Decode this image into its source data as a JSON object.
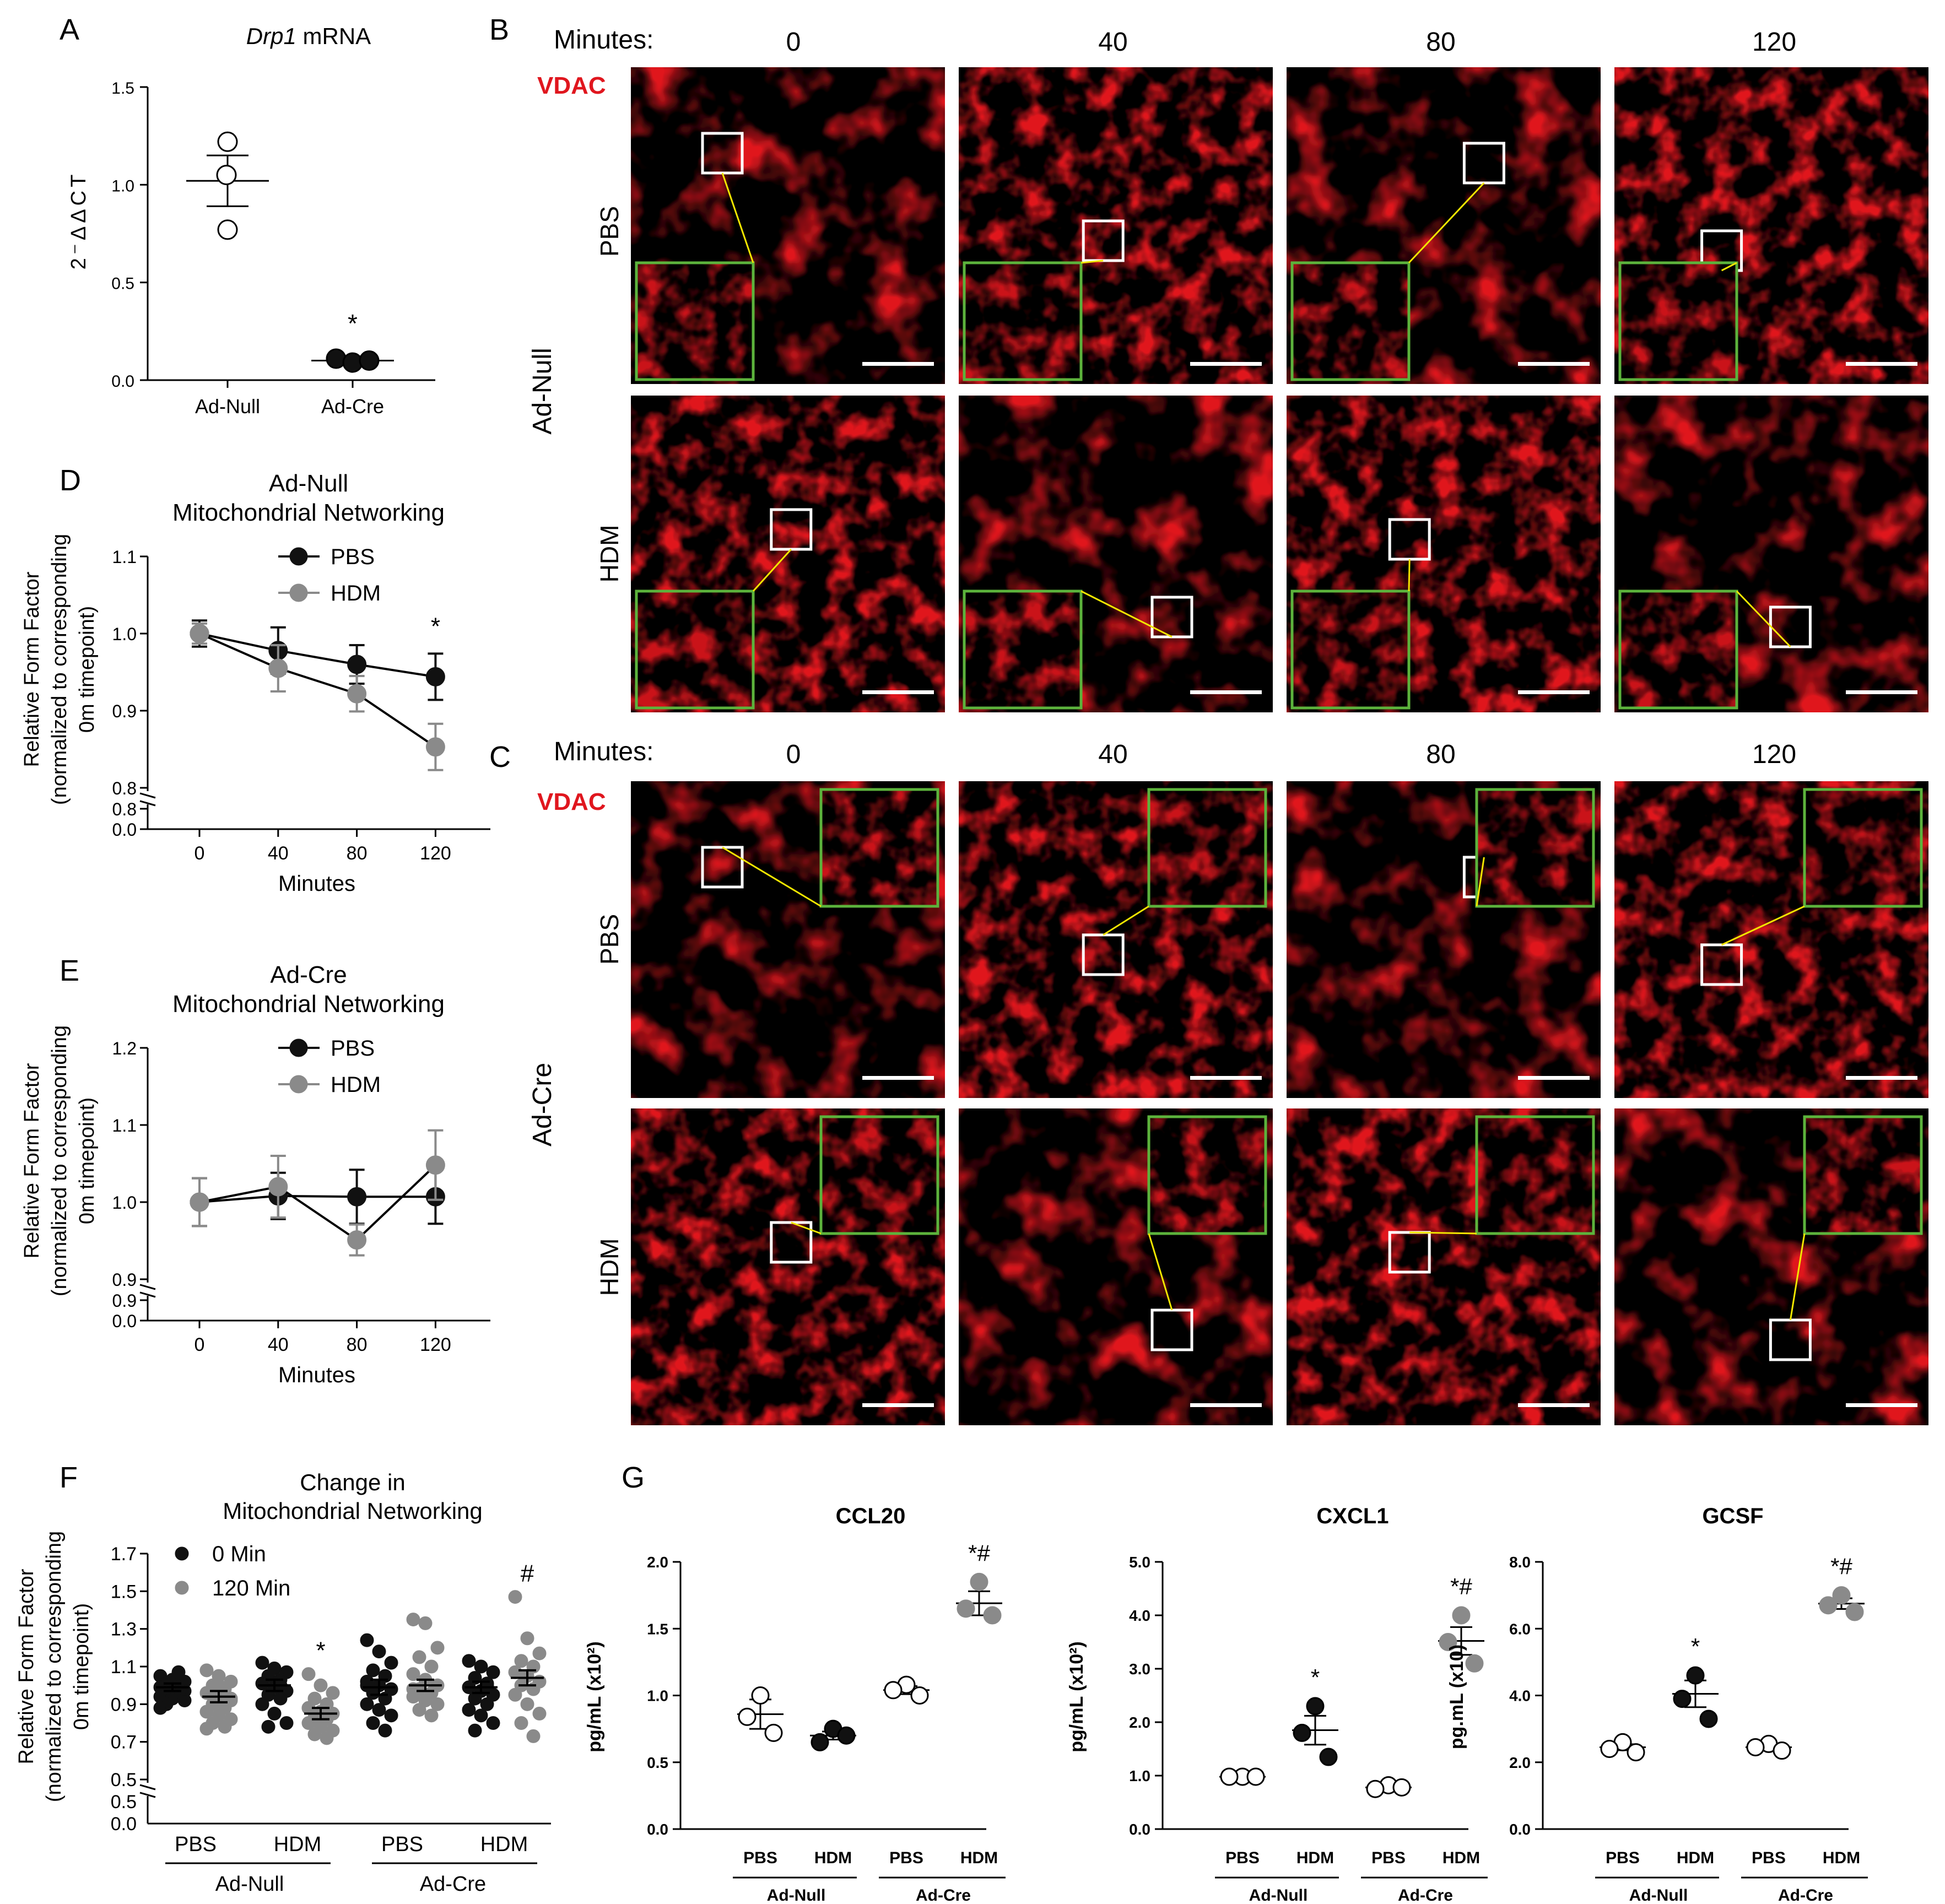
{
  "colors": {
    "black": "#111111",
    "gray": "#8a8a8a",
    "red": "#e0161e",
    "green": "#5cb33c",
    "yellow": "#f2e600",
    "white": "#ffffff"
  },
  "panels": {
    "A": {
      "letter": "A"
    },
    "B": {
      "letter": "B",
      "minutes_label": "Minutes:",
      "timepoints": [
        "0",
        "40",
        "80",
        "120"
      ],
      "stain": "VDAC",
      "group": "Ad-Null",
      "rows": [
        "PBS",
        "HDM"
      ]
    },
    "C": {
      "letter": "C",
      "minutes_label": "Minutes:",
      "timepoints": [
        "0",
        "40",
        "80",
        "120"
      ],
      "stain": "VDAC",
      "group": "Ad-Cre",
      "rows": [
        "PBS",
        "HDM"
      ]
    },
    "D": {
      "letter": "D"
    },
    "E": {
      "letter": "E"
    },
    "F": {
      "letter": "F"
    },
    "G": {
      "letter": "G"
    }
  },
  "chart_data": [
    {
      "panel": "A",
      "type": "scatter",
      "title_italic": "Drp1",
      "title_rest": " mRNA",
      "ylabel": "2⁻ΔΔCT",
      "ylim": [
        0,
        1.5
      ],
      "yticks": [
        "0.0",
        "0.5",
        "1.0",
        "1.5"
      ],
      "categories": [
        "Ad-Null",
        "Ad-Cre"
      ],
      "groups": [
        {
          "category": "Ad-Null",
          "fill": "open",
          "points": [
            1.22,
            1.05,
            0.77
          ],
          "mean": 1.02,
          "sem": 0.13
        },
        {
          "category": "Ad-Cre",
          "fill": "black",
          "points": [
            0.11,
            0.09,
            0.1
          ],
          "mean": 0.1,
          "sem": 0.01,
          "annotation": "*"
        }
      ]
    },
    {
      "panel": "D",
      "type": "line",
      "title": [
        "Ad-Null",
        "Mitochondrial Networking"
      ],
      "ylabel": [
        "Relative Form Factor",
        "(normalized to corresponding",
        "0m timepoint)"
      ],
      "xlabel": "Minutes",
      "x": [
        0,
        40,
        80,
        120
      ],
      "xticks": [
        "0",
        "40",
        "80",
        "120"
      ],
      "ylim": [
        0.8,
        1.1
      ],
      "yticks": [
        "0.8",
        "0.9",
        "1.0",
        "1.1"
      ],
      "ybreak": [
        "0.8",
        "0.0"
      ],
      "legend": [
        "PBS",
        "HDM"
      ],
      "series": [
        {
          "name": "PBS",
          "color": "black",
          "values": [
            1.0,
            0.978,
            0.96,
            0.944
          ],
          "err": [
            0.017,
            0.03,
            0.025,
            0.03
          ]
        },
        {
          "name": "HDM",
          "color": "gray",
          "values": [
            1.0,
            0.955,
            0.922,
            0.853
          ],
          "err": [
            0.013,
            0.03,
            0.023,
            0.03
          ]
        }
      ],
      "annotations": [
        {
          "x": 120,
          "text": "*"
        }
      ]
    },
    {
      "panel": "E",
      "type": "line",
      "title": [
        "Ad-Cre",
        "Mitochondrial Networking"
      ],
      "ylabel": [
        "Relative Form Factor",
        "(normalized to corresponding",
        "0m timepoint)"
      ],
      "xlabel": "Minutes",
      "x": [
        0,
        40,
        80,
        120
      ],
      "xticks": [
        "0",
        "40",
        "80",
        "120"
      ],
      "ylim": [
        0.9,
        1.2
      ],
      "yticks": [
        "0.9",
        "1.0",
        "1.1",
        "1.2"
      ],
      "ybreak": [
        "0.9",
        "0.0"
      ],
      "legend": [
        "PBS",
        "HDM"
      ],
      "series": [
        {
          "name": "PBS",
          "color": "black",
          "values": [
            1.0,
            1.008,
            1.007,
            1.007
          ],
          "err": [
            0.031,
            0.03,
            0.035,
            0.035
          ]
        },
        {
          "name": "HDM",
          "color": "gray",
          "values": [
            1.0,
            1.02,
            0.951,
            1.048
          ],
          "err": [
            0.031,
            0.04,
            0.02,
            0.045
          ]
        }
      ]
    },
    {
      "panel": "F",
      "type": "scatter",
      "title": [
        "Change in",
        "Mitochondrial Networking"
      ],
      "ylabel": [
        "Relative Form Factor",
        "(normalized to corresponding",
        "0m timepoint)"
      ],
      "ylim": [
        0.5,
        1.7
      ],
      "yticks": [
        "0.5",
        "0.7",
        "0.9",
        "1.1",
        "1.3",
        "1.5",
        "1.7"
      ],
      "ybreak": [
        "0.5",
        "0.0"
      ],
      "xticks": [
        "PBS",
        "HDM",
        "PBS",
        "HDM"
      ],
      "groups_label": [
        "Ad-Null",
        "Ad-Cre"
      ],
      "legend": [
        "0 Min",
        "120 Min"
      ],
      "groups": [
        {
          "name": "0 Min",
          "color": "black",
          "x": 0,
          "mean": 0.99,
          "sem": 0.02,
          "points": [
            1.05,
            1.03,
            1.02,
            1.01,
            1.0,
            0.99,
            0.98,
            0.97,
            0.96,
            0.95,
            0.94,
            0.93,
            0.92,
            0.9,
            1.07,
            0.88
          ]
        },
        {
          "name": "120 Min",
          "color": "gray",
          "x": 0,
          "mean": 0.94,
          "sem": 0.03,
          "points": [
            1.08,
            1.05,
            1.02,
            1.0,
            0.98,
            0.96,
            0.94,
            0.92,
            0.9,
            0.88,
            0.86,
            0.84,
            0.82,
            0.8,
            0.78,
            0.77,
            1.0,
            0.93
          ]
        },
        {
          "name": "0 Min",
          "color": "black",
          "x": 1,
          "mean": 1.0,
          "sem": 0.03,
          "points": [
            1.12,
            1.09,
            1.07,
            1.05,
            1.03,
            1.01,
            0.99,
            0.97,
            0.95,
            0.93,
            0.9,
            0.85,
            0.8,
            0.78,
            1.0
          ]
        },
        {
          "name": "120 Min",
          "color": "gray",
          "x": 1,
          "mean": 0.85,
          "sem": 0.03,
          "points": [
            1.06,
            1.0,
            0.96,
            0.93,
            0.9,
            0.88,
            0.86,
            0.85,
            0.83,
            0.82,
            0.8,
            0.78,
            0.76,
            0.74,
            0.72,
            0.88,
            0.84
          ],
          "annotation": "*"
        },
        {
          "name": "0 Min",
          "color": "black",
          "x": 2,
          "mean": 0.99,
          "sem": 0.04,
          "points": [
            1.24,
            1.18,
            1.12,
            1.08,
            1.05,
            1.02,
            1.0,
            0.98,
            0.96,
            0.93,
            0.9,
            0.87,
            0.84,
            0.8,
            0.76,
            1.0
          ]
        },
        {
          "name": "120 Min",
          "color": "gray",
          "x": 2,
          "mean": 1.0,
          "sem": 0.03,
          "points": [
            1.35,
            1.33,
            1.2,
            1.15,
            1.1,
            1.06,
            1.03,
            1.0,
            0.98,
            0.96,
            0.94,
            0.92,
            0.9,
            0.87,
            0.84,
            0.98
          ]
        },
        {
          "name": "0 Min",
          "color": "black",
          "x": 3,
          "mean": 0.99,
          "sem": 0.03,
          "points": [
            1.13,
            1.1,
            1.07,
            1.04,
            1.01,
            0.99,
            0.97,
            0.95,
            0.93,
            0.9,
            0.87,
            0.84,
            0.8,
            0.76,
            1.0
          ]
        },
        {
          "name": "120 Min",
          "color": "gray",
          "x": 3,
          "mean": 1.04,
          "sem": 0.04,
          "points": [
            1.47,
            1.25,
            1.17,
            1.13,
            1.1,
            1.07,
            1.05,
            1.02,
            1.0,
            0.98,
            0.95,
            0.9,
            0.85,
            0.8,
            0.73
          ],
          "annotation": "#"
        }
      ]
    },
    {
      "panel": "G1",
      "type": "scatter",
      "title": "CCL20",
      "ylabel": "pg/mL (x10²)",
      "ylim": [
        0,
        2
      ],
      "yticks": [
        "0.0",
        "0.5",
        "1.0",
        "1.5",
        "2.0"
      ],
      "xticks": [
        "PBS",
        "HDM",
        "PBS",
        "HDM"
      ],
      "groups_label": [
        "Ad-Null",
        "Ad-Cre"
      ],
      "groups": [
        {
          "fill": "open",
          "points": [
            1.0,
            0.84,
            0.72
          ],
          "mean": 0.86,
          "sem": 0.11
        },
        {
          "fill": "black",
          "points": [
            0.75,
            0.65,
            0.7
          ],
          "mean": 0.7,
          "sem": 0.03
        },
        {
          "fill": "open",
          "points": [
            1.08,
            1.04,
            1.0
          ],
          "mean": 1.04,
          "sem": 0.03
        },
        {
          "fill": "gray",
          "points": [
            1.85,
            1.65,
            1.6
          ],
          "mean": 1.69,
          "sem": 0.09,
          "annotation": "*#"
        }
      ]
    },
    {
      "panel": "G2",
      "type": "scatter",
      "title": "CXCL1",
      "ylabel": "pg/mL (x10²)",
      "ylim": [
        0,
        5
      ],
      "yticks": [
        "0.0",
        "1.0",
        "2.0",
        "3.0",
        "4.0",
        "5.0"
      ],
      "xticks": [
        "PBS",
        "HDM",
        "PBS",
        "HDM"
      ],
      "groups_label": [
        "Ad-Null",
        "Ad-Cre"
      ],
      "groups": [
        {
          "fill": "open",
          "points": [
            0.98,
            0.98,
            0.98
          ],
          "mean": 0.98,
          "sem": 0.01
        },
        {
          "fill": "black",
          "points": [
            2.3,
            1.8,
            1.35
          ],
          "mean": 1.85,
          "sem": 0.27,
          "annotation": "*"
        },
        {
          "fill": "open",
          "points": [
            0.82,
            0.75,
            0.78
          ],
          "mean": 0.78,
          "sem": 0.03
        },
        {
          "fill": "gray",
          "points": [
            4.0,
            3.5,
            3.1
          ],
          "mean": 3.52,
          "sem": 0.26,
          "annotation": "*#"
        }
      ]
    },
    {
      "panel": "G3",
      "type": "scatter",
      "title": "GCSF",
      "ylabel": "pg.mL (x10)",
      "ylim": [
        0,
        8
      ],
      "yticks": [
        "0.0",
        "2.0",
        "4.0",
        "6.0",
        "8.0"
      ],
      "xticks": [
        "PBS",
        "HDM",
        "PBS",
        "HDM"
      ],
      "groups_label": [
        "Ad-Null",
        "Ad-Cre"
      ],
      "groups": [
        {
          "fill": "open",
          "points": [
            2.6,
            2.4,
            2.3
          ],
          "mean": 2.45,
          "sem": 0.09
        },
        {
          "fill": "black",
          "points": [
            4.6,
            3.9,
            3.3
          ],
          "mean": 4.05,
          "sem": 0.4,
          "annotation": "*"
        },
        {
          "fill": "open",
          "points": [
            2.55,
            2.45,
            2.35
          ],
          "mean": 2.45,
          "sem": 0.06
        },
        {
          "fill": "gray",
          "points": [
            7.0,
            6.7,
            6.5
          ],
          "mean": 6.75,
          "sem": 0.16,
          "annotation": "*#"
        }
      ]
    }
  ]
}
